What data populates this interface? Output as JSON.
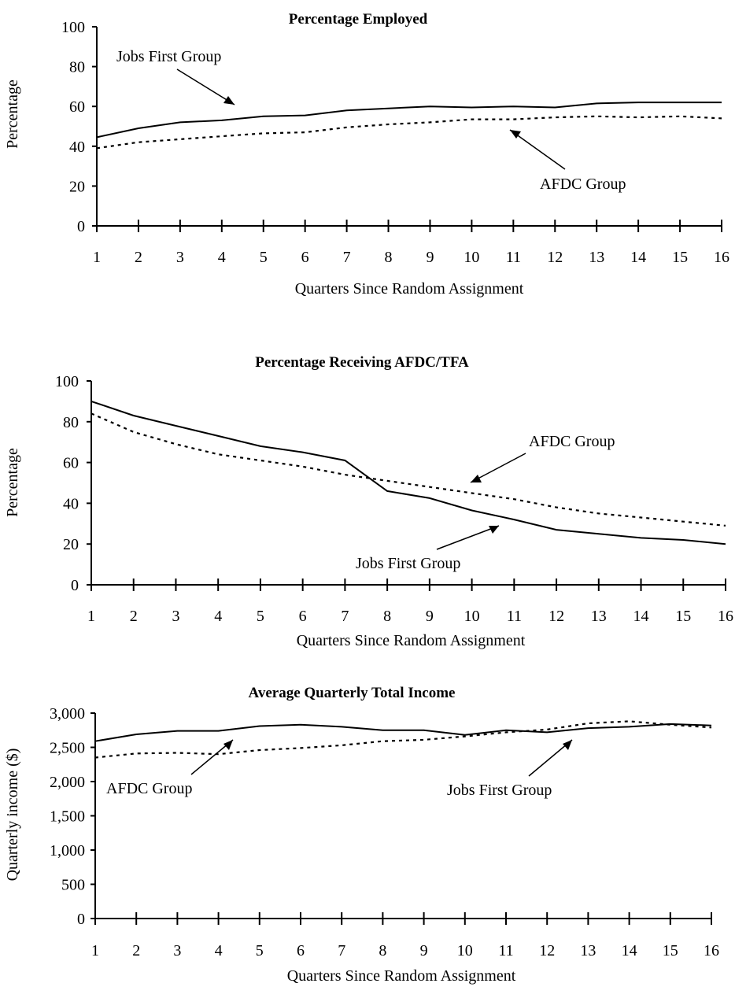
{
  "chart_data": [
    {
      "type": "line",
      "title": "Percentage Employed",
      "xlabel": "Quarters Since Random Assignment",
      "ylabel": "Percentage",
      "x": [
        1,
        2,
        3,
        4,
        5,
        6,
        7,
        8,
        9,
        10,
        11,
        12,
        13,
        14,
        15,
        16
      ],
      "ylim": [
        0,
        100
      ],
      "yticks": [
        0,
        20,
        40,
        60,
        80,
        100
      ],
      "ytick_labels": [
        "0",
        "20",
        "40",
        "60",
        "80",
        "100"
      ],
      "grid": false,
      "series": [
        {
          "name": "Jobs First Group",
          "style": "solid",
          "values": [
            44.5,
            49,
            52,
            53,
            55,
            55.5,
            58,
            59,
            60,
            59.5,
            60,
            59.5,
            61.5,
            62,
            62,
            62
          ]
        },
        {
          "name": "AFDC Group",
          "style": "dotted",
          "values": [
            39,
            42,
            43.5,
            45,
            46.5,
            47,
            49.5,
            51,
            52,
            53.5,
            53.5,
            54.5,
            55,
            54.5,
            55,
            54
          ]
        }
      ],
      "annotations": [
        {
          "text": "Jobs First Group",
          "series": "Jobs First Group"
        },
        {
          "text": "AFDC Group",
          "series": "AFDC Group"
        }
      ]
    },
    {
      "type": "line",
      "title": "Percentage Receiving AFDC/TFA",
      "xlabel": "Quarters Since Random Assignment",
      "ylabel": "Percentage",
      "x": [
        1,
        2,
        3,
        4,
        5,
        6,
        7,
        8,
        9,
        10,
        11,
        12,
        13,
        14,
        15,
        16
      ],
      "ylim": [
        0,
        100
      ],
      "yticks": [
        0,
        20,
        40,
        60,
        80,
        100
      ],
      "ytick_labels": [
        "0",
        "20",
        "40",
        "60",
        "80",
        "100"
      ],
      "grid": false,
      "series": [
        {
          "name": "Jobs First Group",
          "style": "solid",
          "values": [
            90,
            83,
            78,
            73,
            68,
            65,
            61,
            46,
            42.5,
            36.5,
            32,
            27,
            25,
            23,
            22,
            20
          ]
        },
        {
          "name": "AFDC Group",
          "style": "dotted",
          "values": [
            84,
            75,
            69,
            64,
            61,
            58,
            54,
            51,
            48,
            45,
            42,
            38,
            35,
            33,
            31,
            29
          ]
        }
      ],
      "annotations": [
        {
          "text": "AFDC Group",
          "series": "AFDC Group"
        },
        {
          "text": "Jobs First Group",
          "series": "Jobs First Group"
        }
      ]
    },
    {
      "type": "line",
      "title": "Average Quarterly Total Income",
      "xlabel": "Quarters Since Random Assignment",
      "ylabel": "Quarterly income ($)",
      "x": [
        1,
        2,
        3,
        4,
        5,
        6,
        7,
        8,
        9,
        10,
        11,
        12,
        13,
        14,
        15,
        16
      ],
      "ylim": [
        0,
        3000
      ],
      "yticks": [
        0,
        500,
        1000,
        1500,
        2000,
        2500,
        3000
      ],
      "ytick_labels": [
        "0",
        "500",
        "1,000",
        "1,500",
        "2,000",
        "2,500",
        "3,000"
      ],
      "grid": false,
      "series": [
        {
          "name": "Jobs First Group",
          "style": "solid",
          "values": [
            2590,
            2690,
            2740,
            2740,
            2810,
            2830,
            2800,
            2750,
            2750,
            2680,
            2750,
            2720,
            2780,
            2800,
            2840,
            2820
          ]
        },
        {
          "name": "AFDC Group",
          "style": "dotted",
          "values": [
            2350,
            2410,
            2420,
            2400,
            2460,
            2490,
            2530,
            2590,
            2610,
            2660,
            2720,
            2760,
            2850,
            2880,
            2830,
            2790
          ]
        }
      ],
      "annotations": [
        {
          "text": "AFDC Group",
          "series": "AFDC Group"
        },
        {
          "text": "Jobs First Group",
          "series": "Jobs First Group"
        }
      ]
    }
  ]
}
